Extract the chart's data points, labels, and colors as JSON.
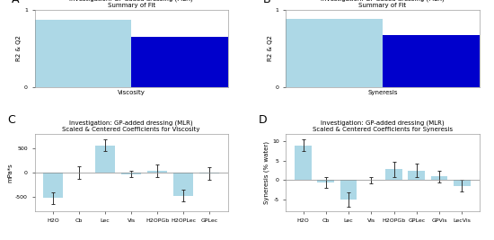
{
  "panel_A": {
    "title_line1": "Investigation: GP-added dressing (MLR)",
    "title_line2": "Summary of Fit",
    "xlabel": "Viscosity",
    "ylabel": "R2 & Q2",
    "bars": [
      {
        "label": "R2",
        "value": 0.87,
        "color": "#ADD8E6"
      },
      {
        "label": "Q2",
        "value": 0.65,
        "color": "#0000CC"
      }
    ],
    "ylim": [
      0,
      1
    ]
  },
  "panel_B": {
    "title_line1": "Investigation: GP-added dressing (MLR)",
    "title_line2": "Summary of Fit",
    "xlabel": "Syneresis",
    "ylabel": "R2 & Q2",
    "bars": [
      {
        "label": "R2",
        "value": 0.88,
        "color": "#ADD8E6"
      },
      {
        "label": "Q2",
        "value": 0.67,
        "color": "#0000CC"
      }
    ],
    "ylim": [
      0,
      1
    ]
  },
  "panel_C": {
    "title_line1": "Investigation: GP-added dressing (MLR)",
    "title_line2": "Scaled & Centered Coefficients for Viscosity",
    "ylabel": "mPa*s",
    "categories": [
      "H2O",
      "Cb",
      "Lec",
      "Vis",
      "H2OPGb",
      "H2OPLec",
      "GPLec"
    ],
    "values": [
      -530,
      0,
      560,
      -40,
      30,
      -480,
      -30
    ],
    "errors": [
      120,
      130,
      120,
      65,
      130,
      120,
      130
    ],
    "color": "#ADD8E6",
    "ylim": [
      -800,
      800
    ],
    "yticks": [
      -500,
      0,
      500
    ]
  },
  "panel_D": {
    "title_line1": "Investigation: GP-added dressing (MLR)",
    "title_line2": "Scaled & Centered Coefficients for Syneresis",
    "ylabel": "Syneresis (% water)",
    "categories": [
      "H2O",
      "Cb",
      "Lec",
      "Vis",
      "H2OPGb",
      "GPLec",
      "GPVis",
      "LecVis"
    ],
    "values": [
      9.0,
      -0.6,
      -5.0,
      0.0,
      2.8,
      2.5,
      1.0,
      -1.5
    ],
    "errors": [
      1.5,
      1.3,
      1.8,
      0.8,
      2.0,
      1.8,
      1.5,
      1.5
    ],
    "color": "#ADD8E6",
    "ylim": [
      -8,
      12
    ],
    "yticks": [
      -5,
      0,
      5,
      10
    ]
  },
  "legend_colors": {
    "R2": "#ADD8E6",
    "Q2": "#0000CC"
  },
  "background_color": "#FFFFFF",
  "panel_label_fontsize": 9,
  "title_fontsize": 5.0,
  "tick_fontsize": 4.5,
  "axis_label_fontsize": 5.0
}
